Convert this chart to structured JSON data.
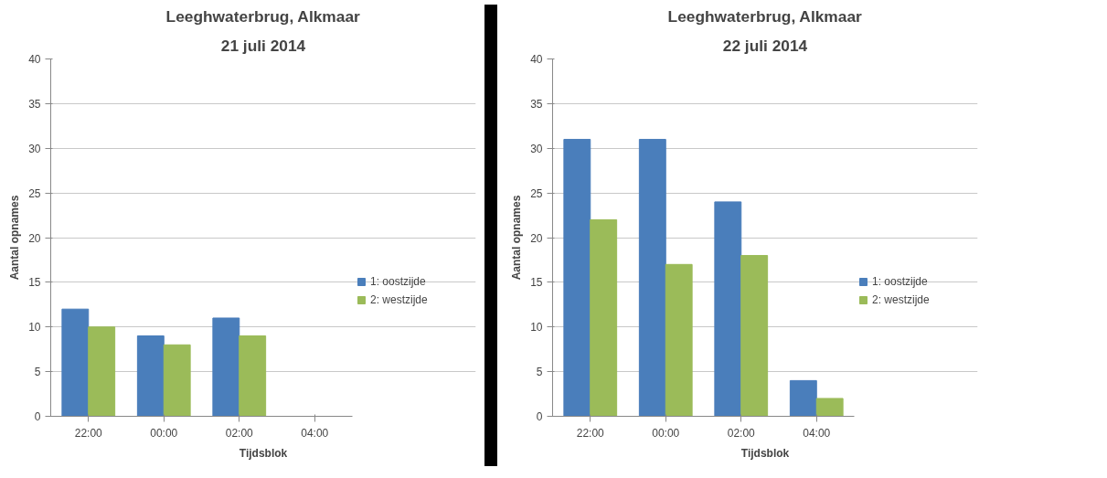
{
  "chart_data": [
    {
      "type": "bar",
      "title": "Leeghwaterbrug, Alkmaar",
      "subtitle": "21 juli 2014",
      "xlabel": "Tijdsblok",
      "ylabel": "Aantal opnames",
      "categories": [
        "22:00",
        "00:00",
        "02:00",
        "04:00"
      ],
      "series": [
        {
          "name": "1: oostzijde",
          "color": "#4a7ebb",
          "values": [
            12,
            9,
            11,
            null
          ]
        },
        {
          "name": "2: westzijde",
          "color": "#9bbb59",
          "values": [
            10,
            8,
            9,
            null
          ]
        }
      ],
      "ylim": [
        0,
        40
      ],
      "yticks": [
        0,
        5,
        10,
        15,
        20,
        25,
        30,
        35,
        40
      ],
      "grid": "y",
      "legend": "right"
    },
    {
      "type": "bar",
      "title": "Leeghwaterbrug, Alkmaar",
      "subtitle": "22 juli 2014",
      "xlabel": "Tijdsblok",
      "ylabel": "Aantal opnames",
      "categories": [
        "22:00",
        "00:00",
        "02:00",
        "04:00"
      ],
      "series": [
        {
          "name": "1: oostzijde",
          "color": "#4a7ebb",
          "values": [
            31,
            31,
            24,
            4
          ]
        },
        {
          "name": "2: westzijde",
          "color": "#9bbb59",
          "values": [
            22,
            17,
            18,
            2
          ]
        }
      ],
      "ylim": [
        0,
        40
      ],
      "yticks": [
        0,
        5,
        10,
        15,
        20,
        25,
        30,
        35,
        40
      ],
      "grid": "y",
      "legend": "right"
    }
  ]
}
